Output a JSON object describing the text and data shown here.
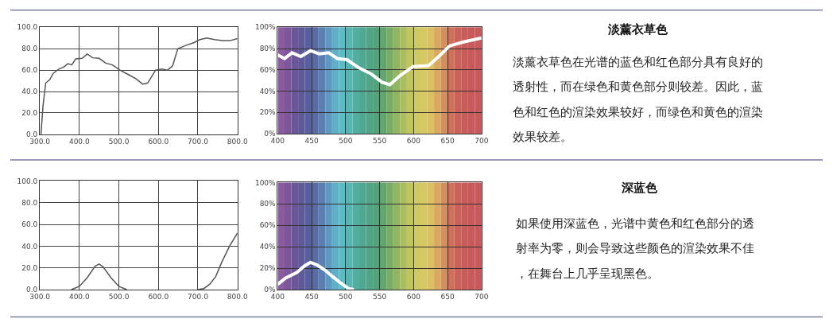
{
  "chart_data": [
    {
      "type": "line",
      "xlim": [
        300,
        800
      ],
      "ylim": [
        0,
        100
      ],
      "grid": true,
      "marker": "none",
      "xticks": [
        {
          "value": 300,
          "label": "300.0"
        },
        {
          "value": 400,
          "label": "400.0"
        },
        {
          "value": 500,
          "label": "500.0"
        },
        {
          "value": 600,
          "label": "600.0"
        },
        {
          "value": 700,
          "label": "700.0"
        },
        {
          "value": 800,
          "label": "800.0"
        }
      ],
      "yticks": [
        {
          "value": 0,
          "label": "0.0"
        },
        {
          "value": 20,
          "label": "20.0"
        },
        {
          "value": 40,
          "label": "40.0"
        },
        {
          "value": 60,
          "label": "60.0"
        },
        {
          "value": 80,
          "label": "80.0"
        },
        {
          "value": 100,
          "label": "100.0"
        }
      ],
      "series": [
        {
          "color": "#555555",
          "x": [
            303,
            308,
            315,
            325,
            334,
            348,
            361,
            371,
            381,
            391,
            407,
            420,
            434,
            450,
            467,
            483,
            503,
            523,
            543,
            560,
            573,
            593,
            609,
            623,
            636,
            649,
            669,
            689,
            705,
            722,
            742,
            762,
            781,
            800
          ],
          "values": [
            0,
            26,
            48,
            51,
            57,
            61,
            63,
            66,
            65,
            70.5,
            71,
            75,
            71.5,
            71,
            66.5,
            65,
            60,
            56,
            52,
            47,
            48,
            60,
            61,
            60,
            64,
            80,
            83,
            85.5,
            88.5,
            90,
            88.5,
            87.5,
            87.5,
            89.5
          ]
        }
      ]
    },
    {
      "type": "line",
      "xlim": [
        400,
        700
      ],
      "ylim": [
        0,
        100
      ],
      "grid": true,
      "marker": "none",
      "xticks": [
        400,
        450,
        500,
        550,
        600,
        650,
        700
      ],
      "yticks": [
        {
          "value": 0,
          "label": "0%"
        },
        {
          "value": 20,
          "label": "20%"
        },
        {
          "value": 40,
          "label": "40%"
        },
        {
          "value": 60,
          "label": "60%"
        },
        {
          "value": 80,
          "label": "80%"
        },
        {
          "value": 100,
          "label": "100%"
        }
      ],
      "bands": [
        {
          "axis": "x",
          "from": 400,
          "to": 410,
          "color": "#8c5aa0"
        },
        {
          "axis": "x",
          "from": 410,
          "to": 420,
          "color": "#7d579c"
        },
        {
          "axis": "x",
          "from": 420,
          "to": 430,
          "color": "#6a5699"
        },
        {
          "axis": "x",
          "from": 430,
          "to": 440,
          "color": "#5e5a9a"
        },
        {
          "axis": "x",
          "from": 440,
          "to": 450,
          "color": "#595f9d"
        },
        {
          "axis": "x",
          "from": 450,
          "to": 460,
          "color": "#5a6aa5"
        },
        {
          "axis": "x",
          "from": 460,
          "to": 470,
          "color": "#5c7fb3"
        },
        {
          "axis": "x",
          "from": 470,
          "to": 480,
          "color": "#5d98c0"
        },
        {
          "axis": "x",
          "from": 480,
          "to": 490,
          "color": "#5fb0c8"
        },
        {
          "axis": "x",
          "from": 490,
          "to": 500,
          "color": "#5bbcc6"
        },
        {
          "axis": "x",
          "from": 500,
          "to": 510,
          "color": "#55b6b4"
        },
        {
          "axis": "x",
          "from": 510,
          "to": 520,
          "color": "#52ae9f"
        },
        {
          "axis": "x",
          "from": 520,
          "to": 530,
          "color": "#50a892"
        },
        {
          "axis": "x",
          "from": 530,
          "to": 540,
          "color": "#4fa585"
        },
        {
          "axis": "x",
          "from": 540,
          "to": 550,
          "color": "#52a27a"
        },
        {
          "axis": "x",
          "from": 550,
          "to": 560,
          "color": "#62a56e"
        },
        {
          "axis": "x",
          "from": 560,
          "to": 570,
          "color": "#78ad66"
        },
        {
          "axis": "x",
          "from": 570,
          "to": 580,
          "color": "#92b562"
        },
        {
          "axis": "x",
          "from": 580,
          "to": 590,
          "color": "#aabd60"
        },
        {
          "axis": "x",
          "from": 590,
          "to": 600,
          "color": "#c0c560"
        },
        {
          "axis": "x",
          "from": 600,
          "to": 610,
          "color": "#cfc962"
        },
        {
          "axis": "x",
          "from": 610,
          "to": 620,
          "color": "#d6c863"
        },
        {
          "axis": "x",
          "from": 620,
          "to": 630,
          "color": "#dac062"
        },
        {
          "axis": "x",
          "from": 630,
          "to": 640,
          "color": "#d9a962"
        },
        {
          "axis": "x",
          "from": 640,
          "to": 650,
          "color": "#d48f5e"
        },
        {
          "axis": "x",
          "from": 650,
          "to": 660,
          "color": "#cf715a"
        },
        {
          "axis": "x",
          "from": 660,
          "to": 670,
          "color": "#cb6259"
        },
        {
          "axis": "x",
          "from": 670,
          "to": 680,
          "color": "#c95c5a"
        },
        {
          "axis": "x",
          "from": 680,
          "to": 690,
          "color": "#c85a5b"
        },
        {
          "axis": "x",
          "from": 690,
          "to": 700,
          "color": "#c65a5c"
        }
      ],
      "series": [
        {
          "color": "#ffffff",
          "x": [
            400,
            410,
            421,
            434,
            448,
            461,
            475,
            488,
            502,
            519,
            538,
            553,
            565,
            580,
            599,
            622,
            637,
            653,
            672,
            700
          ],
          "values": [
            74,
            70.5,
            76,
            72.5,
            78,
            75,
            76,
            70.5,
            69.5,
            62,
            56,
            48.5,
            46,
            54.5,
            63,
            64,
            72.5,
            82.5,
            86,
            90
          ]
        }
      ]
    },
    {
      "type": "other",
      "title": "淡薰衣草色",
      "annotations": [
        "淡薰衣草色在光谱的蓝色和红色部分具有良好的透射性，而在绿色和黄色部分则较差。因此，蓝色和红色的渲染效果较好，而绿色和黄色的渲染效果较差。"
      ]
    },
    {
      "type": "line",
      "xlim": [
        300,
        800
      ],
      "ylim": [
        0,
        100
      ],
      "grid": true,
      "marker": "none",
      "xticks": [
        {
          "value": 300,
          "label": "300.0"
        },
        {
          "value": 400,
          "label": "400.0"
        },
        {
          "value": 500,
          "label": "500.0"
        },
        {
          "value": 600,
          "label": "600.0"
        },
        {
          "value": 700,
          "label": "700.0"
        },
        {
          "value": 800,
          "label": "800.0"
        }
      ],
      "yticks": [
        {
          "value": 0,
          "label": "0.0"
        },
        {
          "value": 20,
          "label": "20.0"
        },
        {
          "value": 40,
          "label": "40.0"
        },
        {
          "value": 60,
          "label": "60.0"
        },
        {
          "value": 80,
          "label": "80.0"
        },
        {
          "value": 100,
          "label": "100.0"
        }
      ],
      "series": [
        {
          "color": "#555555",
          "x": [
            380,
            400,
            420,
            440,
            450,
            460,
            480,
            500,
            520,
            600,
            700,
            715,
            730,
            745,
            760,
            780,
            800
          ],
          "values": [
            0,
            3,
            11,
            21.5,
            23.5,
            21,
            11,
            3,
            0,
            null,
            0,
            1,
            5,
            12,
            25,
            40,
            52
          ]
        }
      ]
    },
    {
      "type": "line",
      "xlim": [
        400,
        700
      ],
      "ylim": [
        0,
        100
      ],
      "grid": true,
      "marker": "none",
      "xticks": [
        400,
        450,
        500,
        550,
        600,
        650,
        700
      ],
      "yticks": [
        {
          "value": 0,
          "label": "0%"
        },
        {
          "value": 20,
          "label": "20%"
        },
        {
          "value": 40,
          "label": "40%"
        },
        {
          "value": 60,
          "label": "60%"
        },
        {
          "value": 80,
          "label": "80%"
        },
        {
          "value": 100,
          "label": "100%"
        }
      ],
      "bands": [
        {
          "axis": "x",
          "from": 400,
          "to": 410,
          "color": "#8c5aa0"
        },
        {
          "axis": "x",
          "from": 410,
          "to": 420,
          "color": "#7d579c"
        },
        {
          "axis": "x",
          "from": 420,
          "to": 430,
          "color": "#6a5699"
        },
        {
          "axis": "x",
          "from": 430,
          "to": 440,
          "color": "#5e5a9a"
        },
        {
          "axis": "x",
          "from": 440,
          "to": 450,
          "color": "#595f9d"
        },
        {
          "axis": "x",
          "from": 450,
          "to": 460,
          "color": "#5a6aa5"
        },
        {
          "axis": "x",
          "from": 460,
          "to": 470,
          "color": "#5c7fb3"
        },
        {
          "axis": "x",
          "from": 470,
          "to": 480,
          "color": "#5d98c0"
        },
        {
          "axis": "x",
          "from": 480,
          "to": 490,
          "color": "#5fb0c8"
        },
        {
          "axis": "x",
          "from": 490,
          "to": 500,
          "color": "#5bbcc6"
        },
        {
          "axis": "x",
          "from": 500,
          "to": 510,
          "color": "#55b6b4"
        },
        {
          "axis": "x",
          "from": 510,
          "to": 520,
          "color": "#52ae9f"
        },
        {
          "axis": "x",
          "from": 520,
          "to": 530,
          "color": "#50a892"
        },
        {
          "axis": "x",
          "from": 530,
          "to": 540,
          "color": "#4fa585"
        },
        {
          "axis": "x",
          "from": 540,
          "to": 550,
          "color": "#52a27a"
        },
        {
          "axis": "x",
          "from": 550,
          "to": 560,
          "color": "#62a56e"
        },
        {
          "axis": "x",
          "from": 560,
          "to": 570,
          "color": "#78ad66"
        },
        {
          "axis": "x",
          "from": 570,
          "to": 580,
          "color": "#92b562"
        },
        {
          "axis": "x",
          "from": 580,
          "to": 590,
          "color": "#aabd60"
        },
        {
          "axis": "x",
          "from": 590,
          "to": 600,
          "color": "#c0c560"
        },
        {
          "axis": "x",
          "from": 600,
          "to": 610,
          "color": "#cfc962"
        },
        {
          "axis": "x",
          "from": 610,
          "to": 620,
          "color": "#d6c863"
        },
        {
          "axis": "x",
          "from": 620,
          "to": 630,
          "color": "#dac062"
        },
        {
          "axis": "x",
          "from": 630,
          "to": 640,
          "color": "#d9a962"
        },
        {
          "axis": "x",
          "from": 640,
          "to": 650,
          "color": "#d48f5e"
        },
        {
          "axis": "x",
          "from": 650,
          "to": 660,
          "color": "#cf715a"
        },
        {
          "axis": "x",
          "from": 660,
          "to": 670,
          "color": "#cb6259"
        },
        {
          "axis": "x",
          "from": 670,
          "to": 680,
          "color": "#c95c5a"
        },
        {
          "axis": "x",
          "from": 680,
          "to": 690,
          "color": "#c85a5b"
        },
        {
          "axis": "x",
          "from": 690,
          "to": 700,
          "color": "#c65a5c"
        }
      ],
      "series": [
        {
          "color": "#ffffff",
          "x": [
            400,
            412,
            428,
            439,
            448,
            458,
            470,
            481,
            493,
            504,
            512
          ],
          "values": [
            5,
            11,
            16,
            22,
            25.5,
            23,
            18,
            12,
            6,
            1,
            0
          ]
        }
      ]
    },
    {
      "type": "other",
      "title": "深蓝色",
      "annotations": [
        "如果使用深蓝色，光谱中黄色和红色部分的透射率为零，则会导致这些颜色的渲染效果不佳，在舞台上几乎呈现黑色。"
      ]
    }
  ]
}
